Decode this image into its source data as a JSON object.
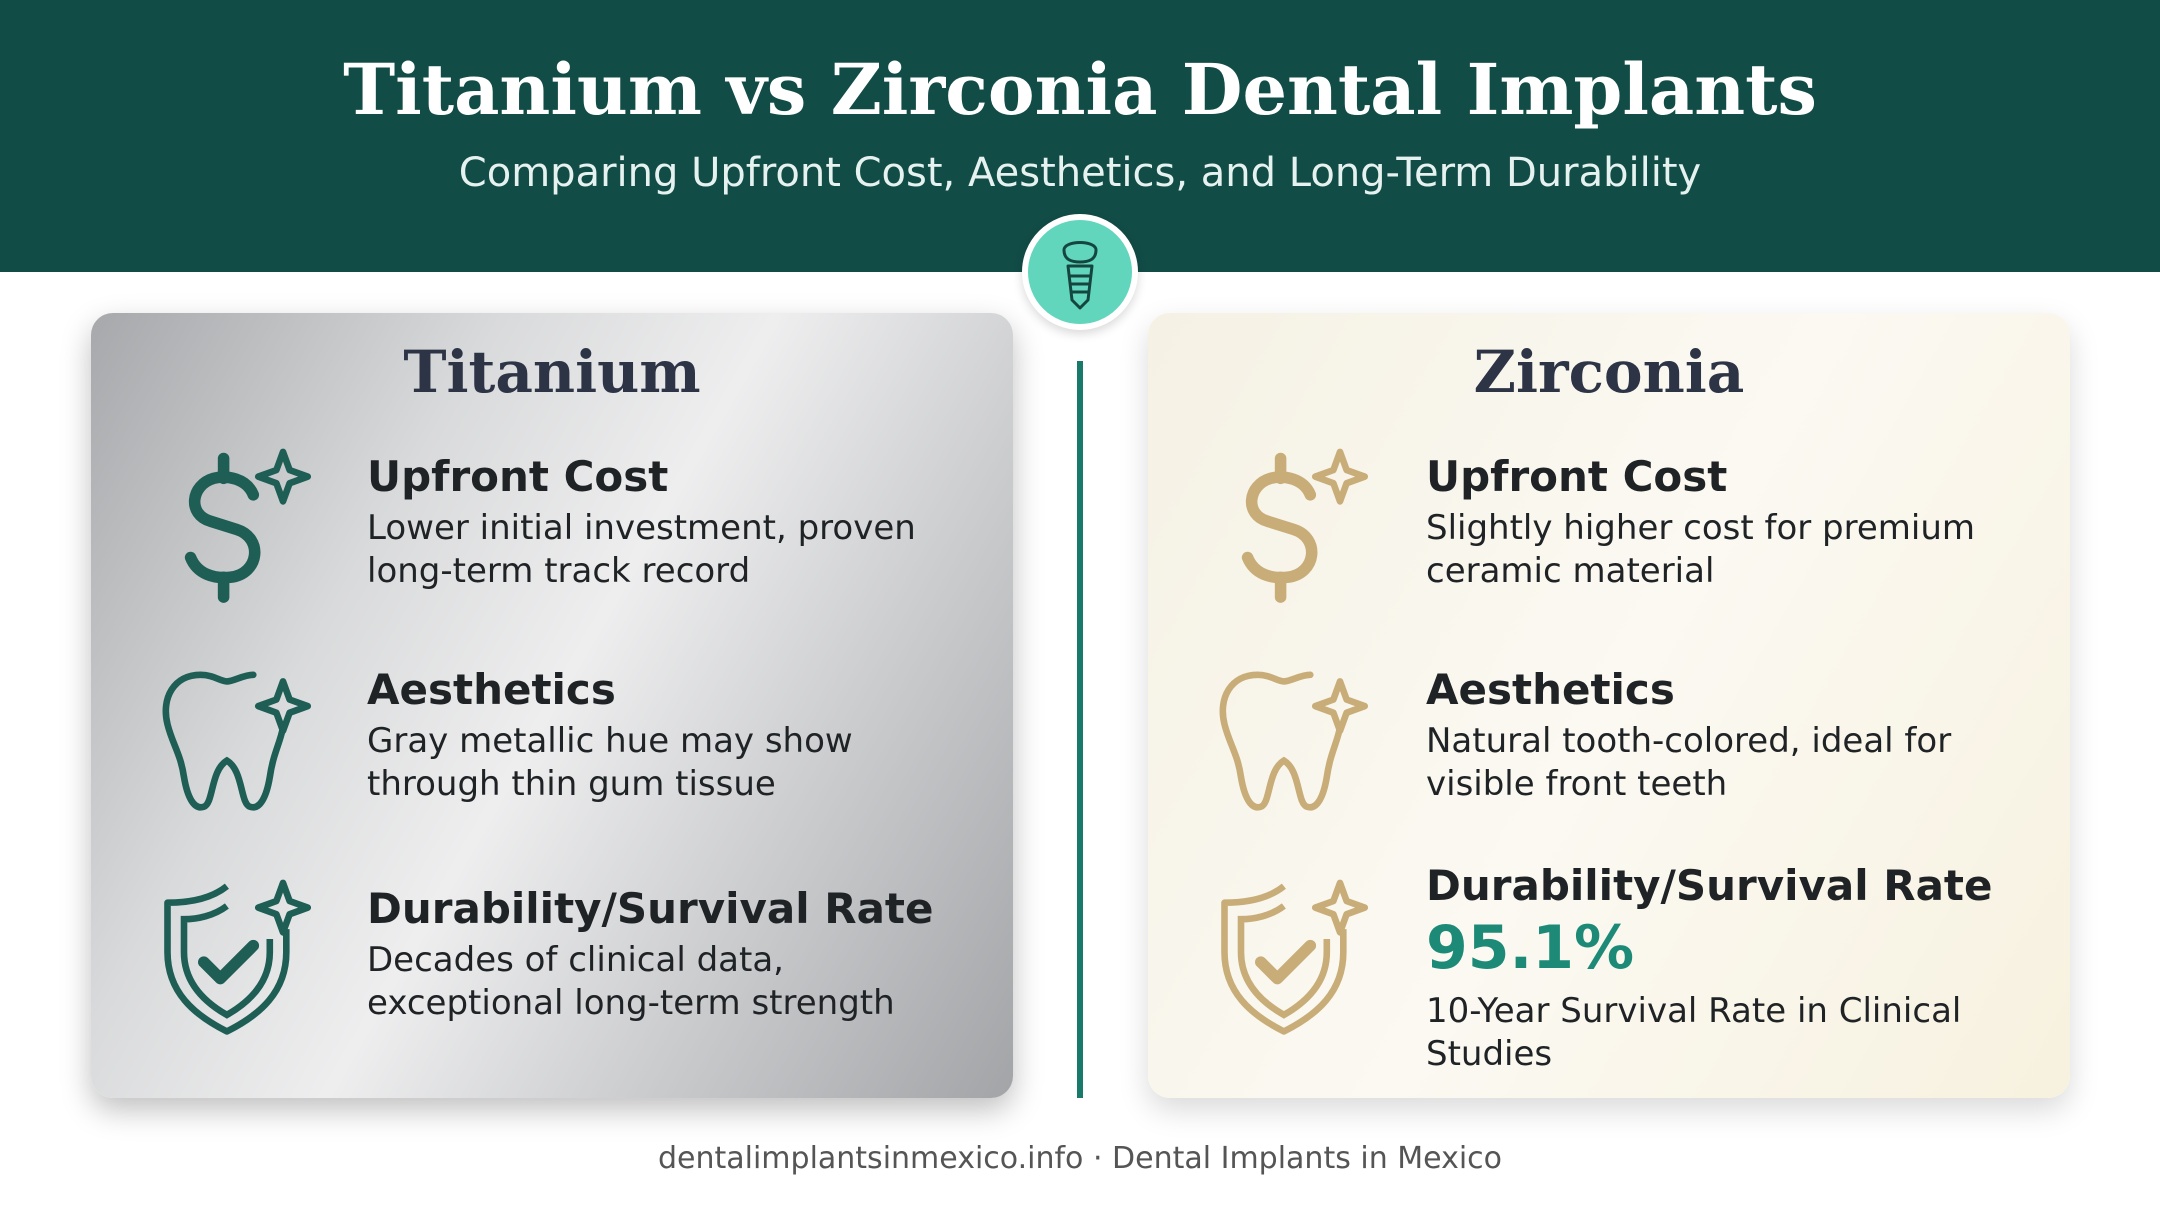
{
  "header": {
    "title": "Titanium vs Zirconia Dental Implants",
    "subtitle": "Comparing Upfront Cost, Aesthetics, and Long-Term Durability"
  },
  "panels": [
    {
      "title": "Titanium",
      "items": [
        {
          "heading": "Upfront Cost",
          "text": "Lower initial investment, proven long-term track record"
        },
        {
          "heading": "Aesthetics",
          "text": "Gray metallic hue may show through thin gum tissue"
        },
        {
          "heading": "Durability/Survival Rate",
          "text": "Decades of clinical data, exceptional long-term strength"
        }
      ]
    },
    {
      "title": "Zirconia",
      "items": [
        {
          "heading": "Upfront Cost",
          "text": "Slightly higher cost for premium ceramic material"
        },
        {
          "heading": "Aesthetics",
          "text": "Natural tooth-colored, ideal for visible front teeth"
        },
        {
          "heading": "Durability/Survival Rate",
          "stat": "95.1%",
          "text": "10-Year Survival Rate in Clinical Studies"
        }
      ]
    }
  ],
  "footer": "dentalimplantsinmexico.info · Dental Implants in Mexico"
}
